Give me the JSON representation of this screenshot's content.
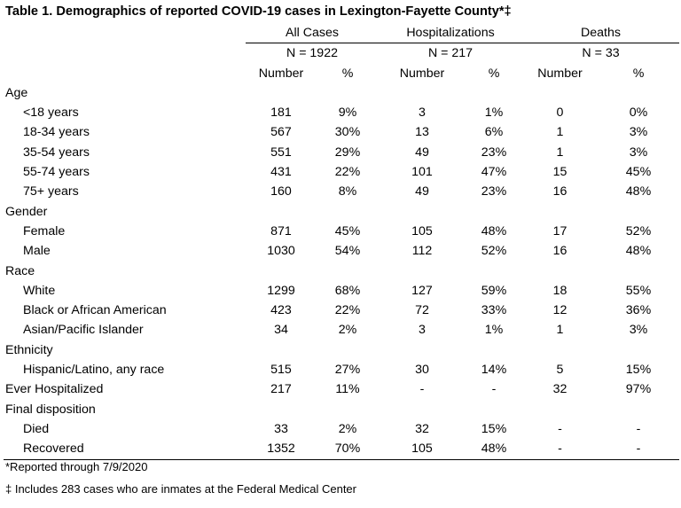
{
  "title": "Table 1. Demographics of reported COVID-19 cases in Lexington-Fayette County*‡",
  "groups": [
    {
      "name": "All Cases",
      "n": "N = 1922"
    },
    {
      "name": "Hospitalizations",
      "n": "N = 217"
    },
    {
      "name": "Deaths",
      "n": "N = 33"
    }
  ],
  "subheaders": {
    "number": "Number",
    "pct": "%"
  },
  "rows": [
    {
      "type": "section",
      "label": "Age"
    },
    {
      "type": "data",
      "label": "<18 years",
      "v": [
        "181",
        "9%",
        "3",
        "1%",
        "0",
        "0%"
      ]
    },
    {
      "type": "data",
      "label": "18-34 years",
      "v": [
        "567",
        "30%",
        "13",
        "6%",
        "1",
        "3%"
      ]
    },
    {
      "type": "data",
      "label": "35-54 years",
      "v": [
        "551",
        "29%",
        "49",
        "23%",
        "1",
        "3%"
      ]
    },
    {
      "type": "data",
      "label": "55-74 years",
      "v": [
        "431",
        "22%",
        "101",
        "47%",
        "15",
        "45%"
      ]
    },
    {
      "type": "data",
      "label": "75+ years",
      "v": [
        "160",
        "8%",
        "49",
        "23%",
        "16",
        "48%"
      ]
    },
    {
      "type": "section",
      "label": "Gender"
    },
    {
      "type": "data",
      "label": "Female",
      "v": [
        "871",
        "45%",
        "105",
        "48%",
        "17",
        "52%"
      ]
    },
    {
      "type": "data",
      "label": "Male",
      "v": [
        "1030",
        "54%",
        "112",
        "52%",
        "16",
        "48%"
      ]
    },
    {
      "type": "section",
      "label": "Race"
    },
    {
      "type": "data",
      "label": "White",
      "v": [
        "1299",
        "68%",
        "127",
        "59%",
        "18",
        "55%"
      ]
    },
    {
      "type": "data",
      "label": "Black or African American",
      "v": [
        "423",
        "22%",
        "72",
        "33%",
        "12",
        "36%"
      ]
    },
    {
      "type": "data",
      "label": "Asian/Pacific Islander",
      "v": [
        "34",
        "2%",
        "3",
        "1%",
        "1",
        "3%"
      ]
    },
    {
      "type": "section",
      "label": "Ethnicity"
    },
    {
      "type": "data",
      "label": "Hispanic/Latino, any race",
      "v": [
        "515",
        "27%",
        "30",
        "14%",
        "5",
        "15%"
      ]
    },
    {
      "type": "top",
      "label": "Ever Hospitalized",
      "v": [
        "217",
        "11%",
        "-",
        "-",
        "32",
        "97%"
      ]
    },
    {
      "type": "section",
      "label": "Final disposition"
    },
    {
      "type": "data",
      "label": "Died",
      "v": [
        "33",
        "2%",
        "32",
        "15%",
        "-",
        "-"
      ]
    },
    {
      "type": "data",
      "label": "Recovered",
      "v": [
        "1352",
        "70%",
        "105",
        "48%",
        "-",
        "-"
      ]
    }
  ],
  "footnotes": [
    "*Reported through 7/9/2020",
    "‡ Includes 283 cases who are inmates at the Federal Medical Center"
  ]
}
